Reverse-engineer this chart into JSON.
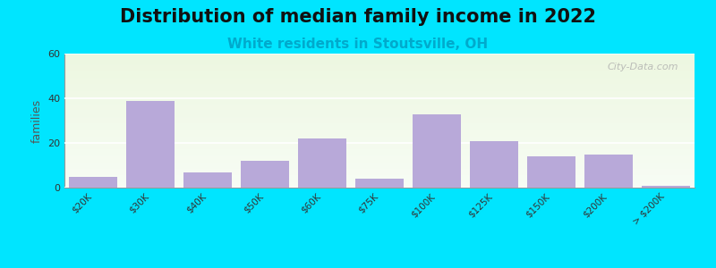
{
  "title": "Distribution of median family income in 2022",
  "subtitle": "White residents in Stoutsville, OH",
  "ylabel": "families",
  "categories": [
    "$20K",
    "$30K",
    "$40K",
    "$50K",
    "$60K",
    "$75K",
    "$100K",
    "$125K",
    "$150K",
    "$200K",
    "> $200K"
  ],
  "values": [
    5,
    39,
    7,
    12,
    22,
    4,
    33,
    21,
    14,
    15,
    1
  ],
  "bar_color": "#b8a9d9",
  "ylim": [
    0,
    60
  ],
  "yticks": [
    0,
    20,
    40,
    60
  ],
  "bg_outer": "#00e5ff",
  "title_fontsize": 15,
  "subtitle_fontsize": 11,
  "subtitle_color": "#00aacc",
  "watermark": "City-Data.com"
}
